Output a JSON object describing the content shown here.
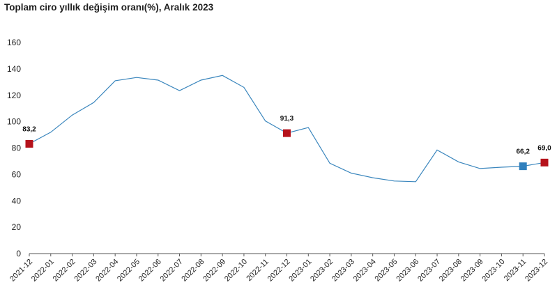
{
  "chart_data": {
    "type": "line",
    "title": "Toplam ciro yıllık değişim oranı(%), Aralık 2023",
    "xlabel": "",
    "ylabel": "",
    "ylim": [
      0,
      160
    ],
    "yticks": [
      0,
      20,
      40,
      60,
      80,
      100,
      120,
      140,
      160
    ],
    "grid": false,
    "categories": [
      "2021-12",
      "2022-01",
      "2022-02",
      "2022-03",
      "2022-04",
      "2022-05",
      "2022-06",
      "2022-07",
      "2022-08",
      "2022-09",
      "2022-10",
      "2022-11",
      "2022-12",
      "2023-01",
      "2023-02",
      "2023-03",
      "2023-04",
      "2023-05",
      "2023-06",
      "2023-07",
      "2023-08",
      "2023-09",
      "2023-10",
      "2023-11",
      "2023-12"
    ],
    "series": [
      {
        "values": [
          83.2,
          92.0,
          105.0,
          114.5,
          131.0,
          133.5,
          131.5,
          123.5,
          131.5,
          135.0,
          126.0,
          100.5,
          91.3,
          95.5,
          68.5,
          61.0,
          57.5,
          55.0,
          54.5,
          78.5,
          69.5,
          64.5,
          65.5,
          66.2,
          69.0
        ],
        "color": "#3a86bd"
      }
    ],
    "markers": [
      {
        "index": 0,
        "label": "83,2",
        "color": "#b5121b"
      },
      {
        "index": 12,
        "label": "91,3",
        "color": "#b5121b"
      },
      {
        "index": 23,
        "label": "66,2",
        "color": "#2f7fbd"
      },
      {
        "index": 24,
        "label": "69,0",
        "color": "#b5121b"
      }
    ]
  }
}
